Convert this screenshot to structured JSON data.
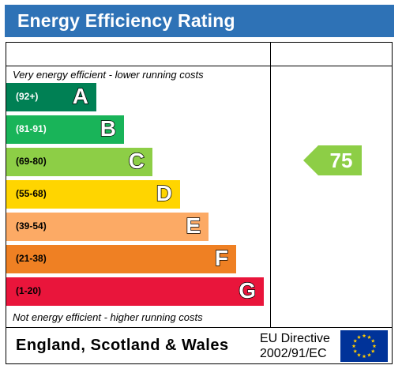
{
  "title": "Energy Efficiency Rating",
  "captions": {
    "top": "Very energy efficient - lower running costs",
    "bottom": "Not energy efficient - higher running costs"
  },
  "chart_data": {
    "type": "bar",
    "bands": [
      {
        "letter": "A",
        "range": "(92+)",
        "color": "#008054"
      },
      {
        "letter": "B",
        "range": "(81-91)",
        "color": "#19b459"
      },
      {
        "letter": "C",
        "range": "(69-80)",
        "color": "#8dce46"
      },
      {
        "letter": "D",
        "range": "(55-68)",
        "color": "#ffd500"
      },
      {
        "letter": "E",
        "range": "(39-54)",
        "color": "#fcaa65"
      },
      {
        "letter": "F",
        "range": "(21-38)",
        "color": "#ef8023"
      },
      {
        "letter": "G",
        "range": "(1-20)",
        "color": "#e9153b"
      }
    ],
    "current_rating": {
      "value": "75",
      "band": "C",
      "color": "#8dce46"
    }
  },
  "footer": {
    "region": "England, Scotland & Wales",
    "eu_directive_line1": "EU Directive",
    "eu_directive_line2": "2002/91/EC",
    "flag_color": "#003399",
    "star_color": "#ffcc00"
  }
}
